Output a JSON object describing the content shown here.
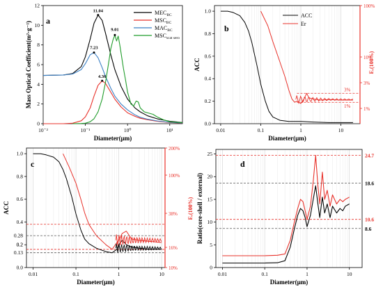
{
  "chart_data": [
    {
      "panel": "a",
      "type": "line",
      "xscale": "log",
      "xlim": [
        0.01,
        20
      ],
      "ylim": [
        0,
        12
      ],
      "xlabel": "Diameter(μm)",
      "ylabel": "Mass Optical Coefficient(m²·g⁻¹)",
      "x_ticks": [
        "10⁻²",
        "10⁻¹",
        "10⁰",
        "10¹"
      ],
      "y_ticks": [
        "0",
        "2",
        "4",
        "6",
        "8",
        "10",
        "12"
      ],
      "legend_position": "top-right",
      "series": [
        {
          "name": "MEC_BC",
          "color": "#000000",
          "x": [
            0.01,
            0.03,
            0.05,
            0.08,
            0.1,
            0.13,
            0.16,
            0.2,
            0.25,
            0.3,
            0.4,
            0.5,
            0.7,
            1.0,
            1.5,
            2,
            3,
            5,
            10,
            20
          ],
          "y": [
            4.9,
            4.95,
            5.1,
            5.8,
            6.8,
            8.6,
            10.2,
            11.04,
            10.5,
            9.2,
            7.0,
            5.5,
            3.8,
            2.5,
            1.6,
            1.2,
            0.8,
            0.5,
            0.25,
            0.12
          ]
        },
        {
          "name": "MSC_BC",
          "color": "#e8312a",
          "x": [
            0.01,
            0.03,
            0.05,
            0.08,
            0.1,
            0.13,
            0.16,
            0.2,
            0.25,
            0.3,
            0.4,
            0.5,
            0.7,
            1.0,
            1.5,
            2,
            3,
            5,
            10,
            20
          ],
          "y": [
            0,
            0,
            0.05,
            0.3,
            0.7,
            1.6,
            2.8,
            3.9,
            4.36,
            4.1,
            3.2,
            2.5,
            1.7,
            1.1,
            0.75,
            0.55,
            0.4,
            0.25,
            0.12,
            0.06
          ]
        },
        {
          "name": "MAC_BC",
          "color": "#3a7fc4",
          "x": [
            0.01,
            0.03,
            0.05,
            0.08,
            0.1,
            0.13,
            0.16,
            0.2,
            0.25,
            0.3,
            0.4,
            0.5,
            0.7,
            1.0,
            1.5,
            2,
            3,
            5,
            10,
            20
          ],
          "y": [
            4.9,
            4.95,
            5.05,
            5.5,
            6.1,
            7.0,
            7.23,
            6.7,
            5.7,
            4.8,
            3.6,
            2.8,
            2.0,
            1.4,
            0.9,
            0.65,
            0.45,
            0.28,
            0.14,
            0.07
          ]
        },
        {
          "name": "MSC_scat sero",
          "color": "#1f9c2a",
          "x": [
            0.05,
            0.08,
            0.1,
            0.13,
            0.16,
            0.2,
            0.25,
            0.3,
            0.35,
            0.4,
            0.45,
            0.5,
            0.55,
            0.6,
            0.65,
            0.7,
            0.8,
            0.9,
            1.0,
            1.2,
            1.4,
            1.6,
            1.8,
            2.0,
            2.5,
            3,
            4,
            5,
            7,
            10,
            20
          ],
          "y": [
            0,
            0.02,
            0.05,
            0.2,
            0.5,
            1.2,
            2.5,
            4.2,
            6.0,
            7.6,
            8.5,
            9.01,
            8.4,
            8.9,
            8.1,
            7.2,
            5.6,
            4.4,
            3.2,
            2.0,
            1.8,
            2.3,
            2.2,
            1.6,
            1.2,
            1.1,
            0.95,
            0.7,
            0.4,
            0.2,
            0.1
          ]
        }
      ],
      "annotations": [
        "11.04",
        "9.01",
        "7.23",
        "4.36"
      ]
    },
    {
      "panel": "b",
      "type": "line",
      "xscale": "log",
      "xlim": [
        0.007,
        30
      ],
      "ylim": [
        0,
        1.05
      ],
      "xlabel": "Diameter(μm)",
      "ylabel": "ACC",
      "y2label": "Eᵣ(100%)",
      "x_ticks": [
        "0.01",
        "0.1",
        "1",
        "10"
      ],
      "y_ticks": [
        "0.0",
        "0.2",
        "0.4",
        "0.6",
        "0.8",
        "1.0"
      ],
      "y2_ticks": [
        "100%",
        "10%",
        "3%",
        "1%"
      ],
      "legend_position": "top-right",
      "reference_labels": [
        "3%",
        "1%"
      ],
      "series": [
        {
          "name": "ACC",
          "color": "#000000",
          "x": [
            0.01,
            0.015,
            0.02,
            0.03,
            0.04,
            0.05,
            0.06,
            0.08,
            0.1,
            0.13,
            0.16,
            0.2,
            0.3,
            0.5,
            1,
            2,
            5,
            10,
            20
          ],
          "y": [
            1.0,
            1.0,
            0.99,
            0.96,
            0.9,
            0.82,
            0.72,
            0.52,
            0.35,
            0.2,
            0.11,
            0.06,
            0.03,
            0.02,
            0.02,
            0.015,
            0.01,
            0.01,
            0.01
          ]
        },
        {
          "name": "Er",
          "color": "#e8312a",
          "x": [
            0.1,
            0.15,
            0.2,
            0.3,
            0.4,
            0.5,
            0.6,
            0.7,
            0.8,
            1.0,
            1.2,
            1.4,
            1.6,
            2,
            3,
            5,
            10,
            20
          ],
          "y": [
            1.0,
            0.87,
            0.73,
            0.55,
            0.42,
            0.3,
            0.22,
            0.19,
            0.2,
            0.18,
            0.22,
            0.27,
            0.23,
            0.22,
            0.21,
            0.215,
            0.21,
            0.21
          ]
        }
      ]
    },
    {
      "panel": "c",
      "type": "line",
      "xscale": "log",
      "xlim": [
        0.007,
        12
      ],
      "ylim": [
        0,
        1.05
      ],
      "xlabel": "Diameter(μm)",
      "ylabel": "ACC",
      "y2label": "Eᵣ(100%)",
      "x_ticks": [
        "0.01",
        "0.1",
        "1",
        "10"
      ],
      "y_ticks": [
        "0.0",
        "0.2",
        "0.4",
        "0.6",
        "0.8",
        "1.0"
      ],
      "y_ref_labels": [
        "0.28",
        "0.2",
        "0.13"
      ],
      "y2_ticks": [
        "200%",
        "100%",
        "38%",
        "16%",
        "10%"
      ],
      "series": [
        {
          "name": "ACC",
          "color": "#000000",
          "x": [
            0.01,
            0.015,
            0.02,
            0.03,
            0.04,
            0.05,
            0.06,
            0.08,
            0.1,
            0.13,
            0.16,
            0.2,
            0.3,
            0.5,
            0.7,
            0.9,
            1.0,
            1.2,
            1.5,
            2,
            3,
            5,
            10
          ],
          "y": [
            1.0,
            1.0,
            0.99,
            0.97,
            0.93,
            0.86,
            0.78,
            0.62,
            0.47,
            0.33,
            0.25,
            0.21,
            0.17,
            0.14,
            0.13,
            0.16,
            0.2,
            0.24,
            0.2,
            0.18,
            0.17,
            0.16,
            0.16
          ]
        },
        {
          "name": "Er",
          "color": "#e8312a",
          "x": [
            0.05,
            0.07,
            0.1,
            0.13,
            0.16,
            0.2,
            0.3,
            0.5,
            0.7,
            0.9,
            1.0,
            1.2,
            1.5,
            2,
            3,
            5,
            10
          ],
          "y": [
            1.0,
            0.88,
            0.74,
            0.6,
            0.48,
            0.38,
            0.28,
            0.2,
            0.16,
            0.22,
            0.24,
            0.3,
            0.32,
            0.25,
            0.24,
            0.23,
            0.22
          ]
        }
      ]
    },
    {
      "panel": "d",
      "type": "line",
      "xscale": "log",
      "xlim": [
        0.007,
        20
      ],
      "ylim": [
        0,
        26
      ],
      "xlabel": "Diameter(μm)",
      "ylabel": "Ratio(core-shell / external)",
      "x_ticks": [
        "0.01",
        "0.1",
        "1",
        "10"
      ],
      "y_ticks": [
        "0",
        "5",
        "10",
        "15",
        "20",
        "25"
      ],
      "reference_values": [
        "24.7",
        "18.6",
        "10.6",
        "8.6"
      ],
      "series": [
        {
          "name": "",
          "color": "#000000",
          "x": [
            0.01,
            0.05,
            0.1,
            0.2,
            0.3,
            0.4,
            0.5,
            0.6,
            0.7,
            0.8,
            0.9,
            1.0,
            1.2,
            1.4,
            1.6,
            1.8,
            2.0,
            2.3,
            2.6,
            3,
            3.5,
            4,
            5,
            6,
            7,
            8,
            10
          ],
          "y": [
            1.0,
            1.0,
            1.0,
            1.05,
            1.5,
            4.5,
            8.5,
            11.5,
            13.0,
            12.5,
            11.0,
            9.0,
            11.5,
            15.0,
            18.0,
            14.0,
            11.0,
            15.5,
            12.0,
            14.0,
            11.0,
            13.5,
            12.0,
            13.0,
            12.5,
            13.5,
            14.0
          ]
        },
        {
          "name": "",
          "color": "#e8312a",
          "x": [
            0.01,
            0.05,
            0.1,
            0.2,
            0.3,
            0.4,
            0.5,
            0.6,
            0.7,
            0.8,
            0.9,
            1.0,
            1.2,
            1.4,
            1.6,
            1.8,
            2.0,
            2.3,
            2.6,
            3,
            3.5,
            4,
            5,
            6,
            7,
            8,
            10
          ],
          "y": [
            2.6,
            2.6,
            2.6,
            2.7,
            3.0,
            6.0,
            10.0,
            13.0,
            15.0,
            14.5,
            12.5,
            10.6,
            13.5,
            19.0,
            24.7,
            18.0,
            14.0,
            21.0,
            15.0,
            17.0,
            13.5,
            16.0,
            14.0,
            15.0,
            14.5,
            15.0,
            15.5
          ]
        }
      ]
    }
  ],
  "panel_letters": [
    "a",
    "b",
    "c",
    "d"
  ]
}
